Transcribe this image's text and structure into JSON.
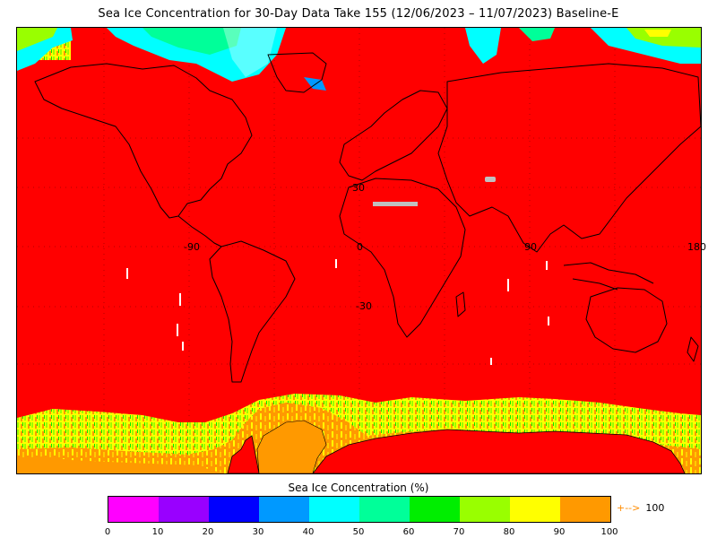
{
  "title": "Sea Ice Concentration for 30-Day Data Take 155 (12/06/2023 – 11/07/2023) Baseline-E",
  "map": {
    "coord_labels": {
      "lat_30": "30",
      "lat_m30": "-30",
      "lon_m90": "-90",
      "lon_0": "0",
      "lon_90": "90",
      "lon_180": "180"
    },
    "colors": {
      "ocean": "#ff0000",
      "land_outline": "#000000",
      "no_data": "#c0c0c0"
    }
  },
  "colorbar": {
    "title": "Sea Ice Concentration (%)",
    "colors": [
      "#ff00ff",
      "#9900ff",
      "#0000ff",
      "#0099ff",
      "#00ffff",
      "#00ff99",
      "#00ee00",
      "#99ff00",
      "#ffff00",
      "#ff9900"
    ],
    "ticks": [
      "0",
      "10",
      "20",
      "30",
      "40",
      "50",
      "60",
      "70",
      "80",
      "90",
      "100"
    ],
    "overflow_arrow": "+-->",
    "overflow_label": "100"
  }
}
